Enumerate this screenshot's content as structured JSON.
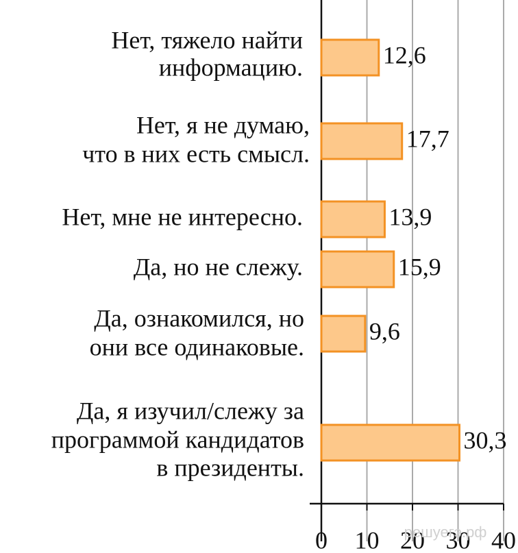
{
  "chart_data": {
    "type": "hbar",
    "categories": [
      [
        "Нет, тяжело найти",
        "информацию."
      ],
      [
        "Нет, я не думаю,",
        "что в них есть смысл."
      ],
      [
        "Нет, мне не интересно."
      ],
      [
        "Да, но не слежу."
      ],
      [
        "Да, ознакомился, но",
        "они все одинаковые."
      ],
      [
        "Да, я изучил/слежу за",
        "программой кандидатов",
        "в президенты."
      ]
    ],
    "values": [
      12.6,
      17.7,
      13.9,
      15.9,
      9.6,
      30.3
    ],
    "value_labels": [
      "12,6",
      "17,7",
      "13,9",
      "15,9",
      "9,6",
      "30,3"
    ],
    "color": "#fdc88a",
    "edge_color": "#f39224",
    "xlim": [
      0,
      40
    ],
    "xticks": [
      0,
      10,
      20,
      30,
      40
    ],
    "grid": true,
    "watermark": "решуегэ.рф"
  }
}
